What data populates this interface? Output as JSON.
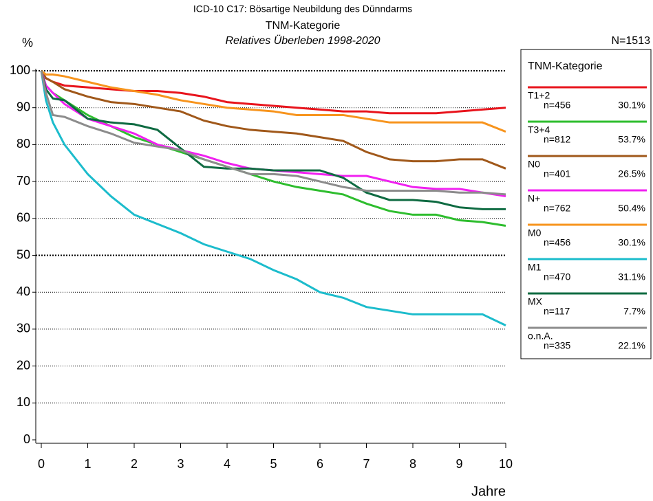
{
  "chart_data": {
    "type": "line",
    "title": "ICD-10 C17: Bösartige Neubildung des Dünndarms",
    "subtitle": "TNM-Kategorie",
    "subtitle2": "Relatives Überleben 1998-2020",
    "y_label": "%",
    "x_label": "Jahre",
    "total": "N=1513",
    "legend_title": "TNM-Kategorie",
    "x": [
      0,
      0.1,
      0.25,
      0.5,
      1,
      1.5,
      2,
      2.5,
      3,
      3.5,
      4,
      4.5,
      5,
      5.5,
      6,
      6.5,
      7,
      7.5,
      8,
      8.5,
      9,
      9.5,
      10
    ],
    "xlim": [
      0,
      10
    ],
    "xticks": [
      0,
      1,
      2,
      3,
      4,
      5,
      6,
      7,
      8,
      9,
      10
    ],
    "ylim": [
      0,
      100
    ],
    "yticks": [
      0,
      10,
      20,
      30,
      40,
      50,
      60,
      70,
      80,
      90,
      100
    ],
    "bold_grid": [
      50,
      100
    ],
    "grid": true,
    "series": [
      {
        "name": "T1+2",
        "count": "n=456",
        "share": "30.1%",
        "color": "#e8141c",
        "values": [
          100,
          98,
          97,
          96,
          95.5,
          95,
          94.5,
          94.5,
          94,
          93,
          91.5,
          91,
          90.5,
          90,
          89.5,
          89,
          89,
          88.5,
          88.5,
          88.5,
          89,
          89.5,
          90
        ]
      },
      {
        "name": "T3+4",
        "count": "n=812",
        "share": "53.7%",
        "color": "#2ebd2e",
        "values": [
          100,
          96,
          94,
          92,
          88,
          85,
          82,
          80,
          78,
          76,
          74,
          72,
          70,
          68.5,
          67.5,
          66.5,
          64,
          62,
          61,
          61,
          59.5,
          59,
          58
        ]
      },
      {
        "name": "N0",
        "count": "n=401",
        "share": "26.5%",
        "color": "#a0581a",
        "values": [
          100,
          98,
          97,
          95,
          93,
          91.5,
          91,
          90,
          89,
          86.5,
          85,
          84,
          83.5,
          83,
          82,
          81,
          78,
          76,
          75.5,
          75.5,
          76,
          76,
          73.5
        ]
      },
      {
        "name": "N+",
        "count": "n=762",
        "share": "50.4%",
        "color": "#f020f0",
        "values": [
          100,
          96,
          94,
          91,
          87,
          85,
          83,
          80,
          78.5,
          77,
          75,
          73.5,
          73,
          72.5,
          72,
          71.5,
          71.5,
          70,
          68.5,
          68,
          68,
          67,
          66
        ]
      },
      {
        "name": "M0",
        "count": "n=456",
        "share": "30.1%",
        "color": "#f7941d",
        "values": [
          100,
          99,
          99,
          98.5,
          97,
          95.5,
          94.5,
          93.5,
          92,
          91,
          90,
          89.5,
          89,
          88,
          88,
          88,
          87,
          86,
          86,
          86,
          86,
          86,
          83.5
        ]
      },
      {
        "name": "M1",
        "count": "n=470",
        "share": "31.1%",
        "color": "#1cbccc",
        "values": [
          100,
          92,
          86,
          80,
          72,
          66,
          61,
          58.5,
          56,
          53,
          51,
          49,
          46,
          43.5,
          40,
          38.5,
          36,
          35,
          34,
          34,
          34,
          34,
          31
        ]
      },
      {
        "name": "MX",
        "count": "n=117",
        "share": "7.7%",
        "color": "#0f6b42",
        "values": [
          100,
          95,
          92.5,
          92,
          87,
          86,
          85.5,
          84,
          79,
          74,
          73.5,
          73.5,
          73,
          73,
          73,
          71,
          67,
          65,
          65,
          64.5,
          63,
          62.5,
          62.5
        ]
      },
      {
        "name": "o.n.A.",
        "count": "n=335",
        "share": "22.1%",
        "color": "#8c8c8c",
        "values": [
          100,
          94,
          88,
          87.5,
          85,
          83,
          80.5,
          79.5,
          78.5,
          76,
          74,
          72,
          72,
          71.5,
          70,
          68.5,
          67.5,
          67.5,
          67.5,
          67.5,
          67,
          67,
          66.5
        ]
      }
    ]
  }
}
